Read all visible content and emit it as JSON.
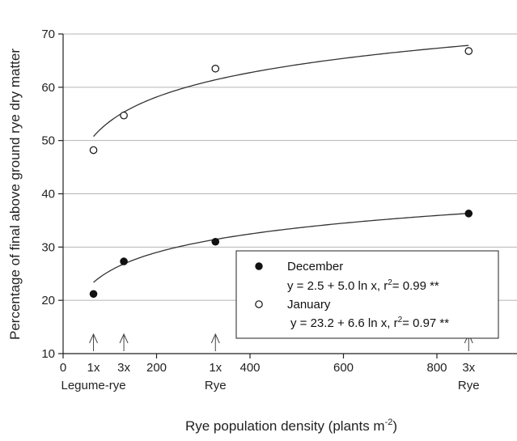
{
  "chart_data": {
    "type": "scatter",
    "title": "",
    "xlabel": "Rye population density (plants m",
    "xlabel_sup": "-2",
    "xlabel_tail": ")",
    "ylabel": "Percentage of final above ground rye dry matter",
    "xlim": [
      0,
      900
    ],
    "ylim": [
      10,
      70
    ],
    "x_ticks": [
      0,
      200,
      400,
      600,
      800
    ],
    "y_ticks": [
      10,
      20,
      30,
      40,
      50,
      60,
      70
    ],
    "grid": "horizontal",
    "legend_position": "bottom-right",
    "series": [
      {
        "name": "December",
        "marker": "filled-circle",
        "x": [
          65,
          130,
          326,
          868
        ],
        "y": [
          21.2,
          27.3,
          31.0,
          36.3
        ],
        "fit": {
          "a": 2.5,
          "b": 5.0,
          "label_prefix": "y = 2.5 + 5.0 ln x, r",
          "label_sup": "2",
          "label_suffix": "= 0.99 **"
        }
      },
      {
        "name": "January",
        "marker": "open-circle",
        "x": [
          65,
          130,
          326,
          868
        ],
        "y": [
          48.2,
          54.7,
          63.5,
          66.8
        ],
        "fit": {
          "a": 23.2,
          "b": 6.6,
          "label_prefix": "y = 23.2 + 6.6 ln x, r",
          "label_sup": "2",
          "label_suffix": "= 0.97 **"
        }
      }
    ],
    "annotations": [
      {
        "x": 65,
        "top": "1x",
        "bottom": "Legume-rye"
      },
      {
        "x": 130,
        "top": "3x",
        "bottom": ""
      },
      {
        "x": 326,
        "top": "1x",
        "bottom": "Rye"
      },
      {
        "x": 868,
        "top": "3x",
        "bottom": "Rye"
      }
    ]
  }
}
